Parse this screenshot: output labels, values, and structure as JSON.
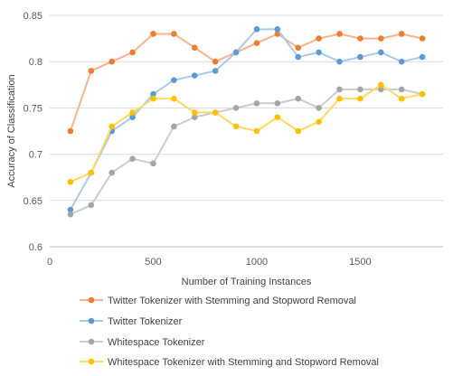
{
  "chart_data": {
    "type": "line",
    "title": "",
    "xlabel": "Number of Training Instances",
    "ylabel": "Accuracy of Classification",
    "xlim": [
      0,
      1900
    ],
    "ylim": [
      0.6,
      0.85
    ],
    "xticks": [
      0,
      500,
      1000,
      1500
    ],
    "xtick_labels": [
      "0",
      "500",
      "1000",
      "1500"
    ],
    "yticks": [
      0.6,
      0.65,
      0.7,
      0.75,
      0.8,
      0.85
    ],
    "ytick_labels": [
      "0.6",
      "0.65",
      "0.7",
      "0.75",
      "0.8",
      "0.85"
    ],
    "grid": "horizontal",
    "legend_position": "bottom",
    "x": [
      100,
      200,
      300,
      400,
      500,
      600,
      700,
      800,
      900,
      1000,
      1100,
      1200,
      1300,
      1400,
      1500,
      1600,
      1700,
      1800
    ],
    "series": [
      {
        "name": "Twitter Tokenizer with Stemming and Stopword Removal",
        "line_color": "#f5b48e",
        "marker_color": "#ed7d31",
        "values": [
          0.725,
          0.79,
          0.8,
          0.81,
          0.83,
          0.83,
          0.815,
          0.8,
          0.81,
          0.82,
          0.83,
          0.815,
          0.825,
          0.83,
          0.825,
          0.825,
          0.83,
          0.825
        ]
      },
      {
        "name": "Twitter Tokenizer",
        "line_color": "#a9c9e8",
        "marker_color": "#5b9bd5",
        "values": [
          0.64,
          0.68,
          0.725,
          0.74,
          0.765,
          0.78,
          0.785,
          0.79,
          0.81,
          0.835,
          0.835,
          0.805,
          0.81,
          0.8,
          0.805,
          0.81,
          0.8,
          0.805
        ]
      },
      {
        "name": "Whitespace Tokenizer",
        "line_color": "#cccccc",
        "marker_color": "#a5a5a5",
        "values": [
          0.635,
          0.645,
          0.68,
          0.695,
          0.69,
          0.73,
          0.74,
          0.745,
          0.75,
          0.755,
          0.755,
          0.76,
          0.75,
          0.77,
          0.77,
          0.77,
          0.77,
          0.765
        ]
      },
      {
        "name": "Whitespace Tokenizer with Stemming and Stopword Removal",
        "line_color": "#ffd966",
        "marker_color": "#ffc000",
        "values": [
          0.67,
          0.68,
          0.73,
          0.745,
          0.76,
          0.76,
          0.745,
          0.745,
          0.73,
          0.725,
          0.74,
          0.725,
          0.735,
          0.76,
          0.76,
          0.775,
          0.76,
          0.765
        ]
      }
    ]
  }
}
